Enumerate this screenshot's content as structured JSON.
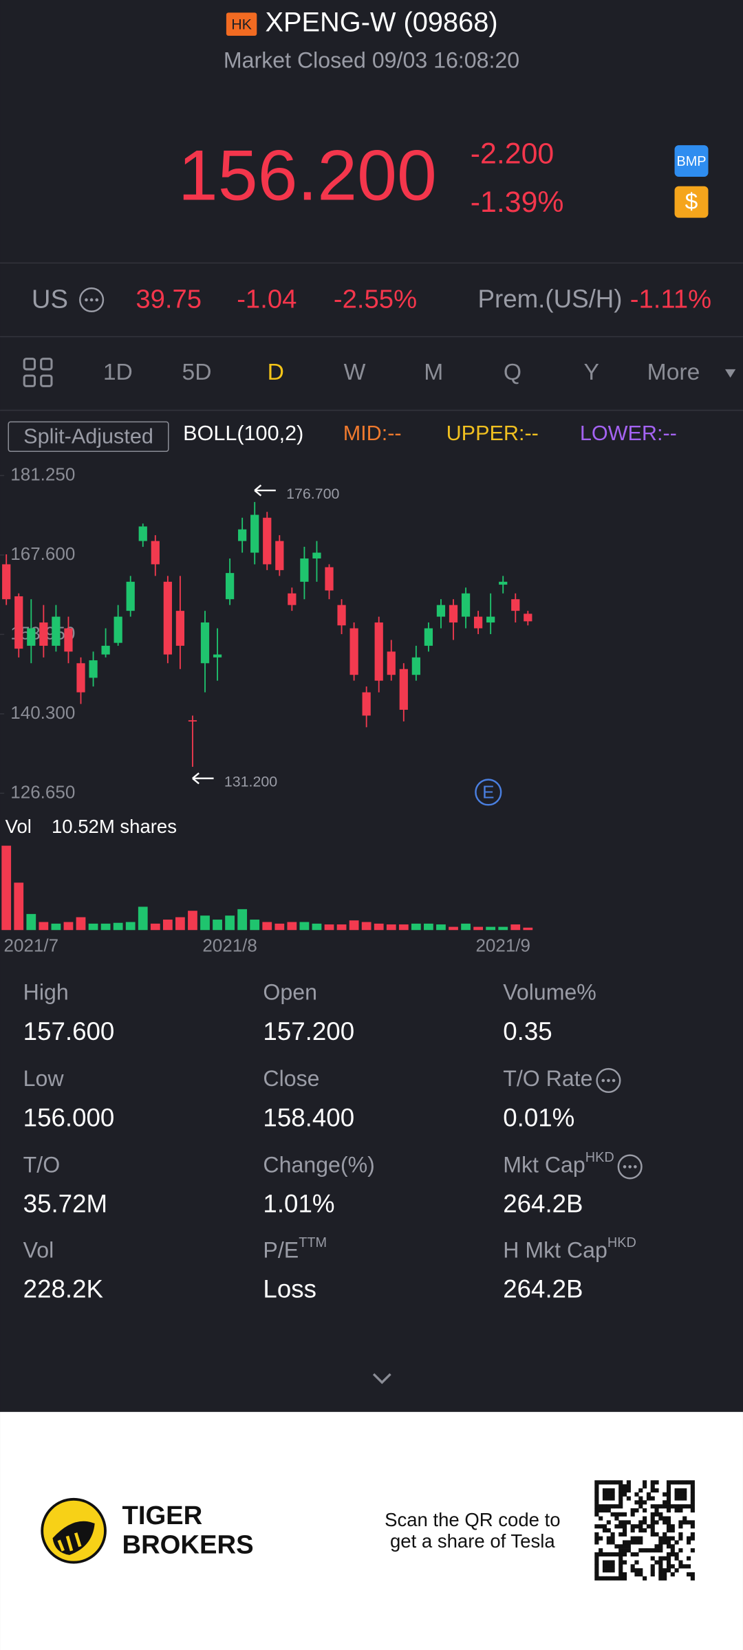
{
  "header": {
    "exchange_badge": "HK",
    "title": "XPENG-W (09868)",
    "status": "Market Closed 09/03 16:08:20",
    "price": "156.200",
    "change": "-2.200",
    "change_pct": "-1.39%",
    "badges": [
      "BMP",
      "$"
    ]
  },
  "us_quote": {
    "label": "US",
    "price": "39.75",
    "change": "-1.04",
    "change_pct": "-2.55%",
    "premium_label": "Prem.(US/H)",
    "premium": "-1.11%"
  },
  "tabs": {
    "items": [
      "1D",
      "5D",
      "D",
      "W",
      "M",
      "Q",
      "Y",
      "More"
    ],
    "active": "D"
  },
  "indicators": {
    "adjust": "Split-Adjusted",
    "boll": "BOLL(100,2)",
    "mid": "MID:--",
    "upper": "UPPER:--",
    "lower": "LOWER:--"
  },
  "chart_data": {
    "type": "candlestick",
    "categories": [
      null,
      null,
      "2021/7",
      null,
      null,
      null,
      null,
      null,
      null,
      null,
      null,
      null,
      null,
      null,
      null,
      null,
      null,
      null,
      "2021/8",
      null,
      null,
      null,
      null,
      null,
      null,
      null,
      null,
      null,
      null,
      null,
      null,
      null,
      null,
      null,
      null,
      null,
      null,
      null,
      null,
      null,
      "2021/9",
      null,
      null
    ],
    "open": [
      166,
      160.5,
      152,
      156,
      152,
      155,
      149,
      146.5,
      150.5,
      152.5,
      158,
      170,
      170,
      163,
      158,
      139.2,
      149,
      150,
      160,
      170,
      168,
      174,
      170,
      161,
      163,
      167,
      165.5,
      159,
      155,
      144,
      156,
      151,
      148,
      147,
      152,
      157,
      159,
      157,
      157,
      156,
      162.5,
      160,
      157.5
    ],
    "high": [
      167.7,
      161,
      160,
      159,
      159,
      157,
      150,
      151,
      155,
      159,
      164,
      173,
      171,
      164,
      164,
      140,
      158,
      155,
      167,
      174,
      176.7,
      175,
      171,
      162,
      169,
      170,
      166,
      160,
      156,
      145,
      157,
      153,
      149,
      152,
      156,
      160,
      160,
      162,
      158,
      161,
      164,
      161,
      158
    ],
    "low": [
      159,
      150,
      149,
      150,
      151,
      149,
      142,
      145,
      150,
      152,
      157,
      169,
      164,
      149,
      148,
      131.2,
      144,
      146,
      159,
      168,
      166,
      165,
      164,
      158,
      160,
      163,
      160,
      154,
      146,
      138,
      144,
      146,
      139,
      146,
      151,
      155,
      153,
      155,
      154,
      154,
      161,
      156,
      155.5
    ],
    "close": [
      160,
      151.5,
      155,
      152,
      157,
      151,
      144,
      149.5,
      152,
      157,
      163,
      172.5,
      166,
      150.5,
      152,
      139,
      156,
      150.5,
      164.5,
      172,
      174.5,
      166,
      165,
      159,
      167,
      168,
      161.5,
      155.5,
      147,
      140,
      146,
      147,
      141,
      150,
      155,
      159,
      156,
      161,
      155,
      157,
      163,
      158,
      156.2
    ],
    "ylim": [
      126.65,
      181.25
    ],
    "yticks": [
      {
        "value": 181.25,
        "label": "181.250"
      },
      {
        "value": 167.6,
        "label": "167.600"
      },
      {
        "value": 153.95,
        "label": "153.950"
      },
      {
        "value": 140.3,
        "label": "140.300"
      },
      {
        "value": 126.65,
        "label": "126.650"
      }
    ],
    "up_color": "#1fc46e",
    "down_color": "#f23a4f",
    "annotations": [
      {
        "value": 176.7,
        "label": "176.700"
      },
      {
        "value": 131.2,
        "label": "131.200"
      }
    ],
    "event_marker": "E",
    "volume": {
      "label": "Vol",
      "total_label": "10.52M shares",
      "ylim": [
        0,
        11
      ],
      "values": [
        10.5,
        5.9,
        2.0,
        1.0,
        0.8,
        1.0,
        1.6,
        0.8,
        0.8,
        0.9,
        1.0,
        2.9,
        0.8,
        1.3,
        1.6,
        2.4,
        1.8,
        1.3,
        1.8,
        2.6,
        1.3,
        1.0,
        0.8,
        1.0,
        1.0,
        0.8,
        0.7,
        0.7,
        1.2,
        1.0,
        0.8,
        0.7,
        0.7,
        0.8,
        0.8,
        0.7,
        0.4,
        0.8,
        0.4,
        0.4,
        0.4,
        0.7,
        0.3
      ]
    }
  },
  "stats": [
    {
      "label": "High",
      "value": "157.600"
    },
    {
      "label": "Open",
      "value": "157.200"
    },
    {
      "label": "Volume%",
      "value": "0.35"
    },
    {
      "label": "Low",
      "value": "156.000"
    },
    {
      "label": "Close",
      "value": "158.400"
    },
    {
      "label": "T/O Rate",
      "value": "0.01%"
    },
    {
      "label": "T/O",
      "value": "35.72M"
    },
    {
      "label": "Change(%)",
      "value": "1.01%"
    },
    {
      "label": "Mkt Cap",
      "sup": "HKD",
      "value": "264.2B"
    },
    {
      "label": "Vol",
      "value": "228.2K"
    },
    {
      "label": "P/E",
      "sup": "TTM",
      "value": "Loss"
    },
    {
      "label": "H Mkt Cap",
      "sup": "HKD",
      "value": "264.2B"
    }
  ],
  "footer": {
    "brand": [
      "TIGER",
      "BROKERS"
    ],
    "promo": [
      "Scan the QR code to",
      "get a share of Tesla"
    ]
  }
}
